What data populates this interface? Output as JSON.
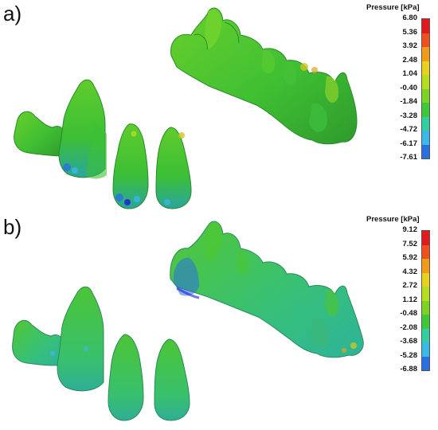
{
  "panels": [
    {
      "id": "a",
      "label": "a)",
      "legend": {
        "title": "Pressure [kPa]",
        "ticks": [
          "6.80",
          "5.36",
          "3.92",
          "2.48",
          "1.04",
          "-0.40",
          "-1.84",
          "-3.28",
          "-4.72",
          "-6.17",
          "-7.61"
        ]
      }
    },
    {
      "id": "b",
      "label": "b)",
      "legend": {
        "title": "Pressure [kPa]",
        "ticks": [
          "9.12",
          "7.52",
          "5.92",
          "4.32",
          "2.72",
          "1.12",
          "-0.48",
          "-2.08",
          "-3.68",
          "-5.28",
          "-6.88"
        ]
      }
    }
  ],
  "colormap": [
    "#e31a1c",
    "#f0501e",
    "#f29b1a",
    "#e8d21c",
    "#b7dd1e",
    "#7cd322",
    "#3fc93a",
    "#33cfa3",
    "#3ab8e8",
    "#2a6fe0",
    "#1c1cd6"
  ]
}
